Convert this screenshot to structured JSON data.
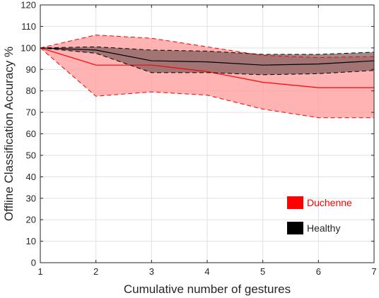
{
  "chart_data": {
    "type": "area",
    "xlabel": "Cumulative number of gestures",
    "ylabel": "Offline Classification Accuracy %",
    "xlim": [
      1,
      7
    ],
    "ylim": [
      0,
      120
    ],
    "x_ticks": [
      "1",
      "2",
      "3",
      "4",
      "5",
      "6",
      "7"
    ],
    "y_ticks": [
      "0",
      "10",
      "20",
      "30",
      "40",
      "50",
      "60",
      "70",
      "80",
      "90",
      "100",
      "110",
      "120"
    ],
    "grid": true,
    "legend_position": "bottom-right",
    "x": [
      1,
      2,
      3,
      4,
      5,
      6,
      7
    ],
    "series": [
      {
        "name": "Duchenne",
        "color": "#ff0000",
        "fill_color": "#ff9a9a",
        "mean": [
          100,
          92,
          92,
          89,
          84,
          81.5,
          81.5
        ],
        "upper": [
          100,
          106,
          104.5,
          100.5,
          96.5,
          95.5,
          96
        ],
        "lower": [
          100,
          77.5,
          79.5,
          78,
          71.5,
          67.5,
          67.5
        ]
      },
      {
        "name": "Healthy",
        "color": "#000000",
        "fill_color": "#7a5a5a",
        "mean": [
          100,
          99,
          94,
          93.5,
          92,
          92.5,
          94
        ],
        "upper": [
          100,
          100.5,
          99,
          98.5,
          97,
          97,
          98
        ],
        "lower": [
          100,
          97.5,
          88.5,
          88.5,
          87.5,
          88,
          89.5
        ]
      }
    ]
  }
}
